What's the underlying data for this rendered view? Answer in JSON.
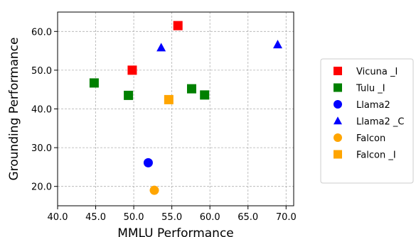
{
  "chart_data": {
    "type": "scatter",
    "xlabel": "MMLU Performance",
    "ylabel": "Grounding Performance",
    "xlim": [
      40.0,
      71.0
    ],
    "ylim": [
      15.0,
      65.0
    ],
    "xticks": [
      "40.0",
      "45.0",
      "50.0",
      "55.0",
      "60.0",
      "65.0",
      "70.0"
    ],
    "xtick_values": [
      40,
      45,
      50,
      55,
      60,
      65,
      70
    ],
    "yticks": [
      "20.0",
      "30.0",
      "40.0",
      "50.0",
      "60.0"
    ],
    "ytick_values": [
      20,
      30,
      40,
      50,
      60
    ],
    "grid": true,
    "legend_position": "right",
    "series": [
      {
        "name": "Vicuna _I",
        "color": "#ff0000",
        "marker": "square",
        "points": [
          [
            49.8,
            50.0
          ],
          [
            55.8,
            61.5
          ]
        ]
      },
      {
        "name": "Tulu _I",
        "color": "#008000",
        "marker": "square",
        "points": [
          [
            44.8,
            46.7
          ],
          [
            49.3,
            43.5
          ],
          [
            57.6,
            45.2
          ],
          [
            59.3,
            43.6
          ]
        ]
      },
      {
        "name": "Llama2",
        "color": "#0000ff",
        "marker": "circle",
        "points": [
          [
            51.9,
            26.1
          ]
        ]
      },
      {
        "name": "Llama2 _C",
        "color": "#0000ff",
        "marker": "triangle",
        "points": [
          [
            53.6,
            55.8
          ],
          [
            68.9,
            56.6
          ]
        ]
      },
      {
        "name": "Falcon",
        "color": "#ffa500",
        "marker": "circle",
        "points": [
          [
            52.7,
            19.0
          ]
        ]
      },
      {
        "name": "Falcon _I",
        "color": "#ffa500",
        "marker": "square",
        "points": [
          [
            54.6,
            42.4
          ]
        ]
      }
    ]
  }
}
